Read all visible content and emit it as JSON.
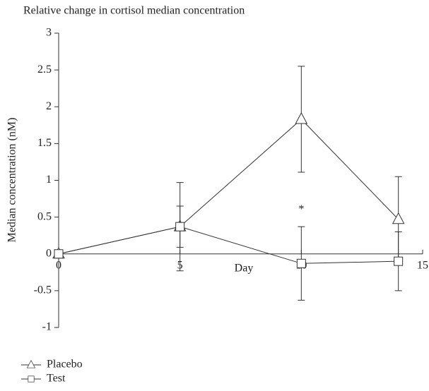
{
  "chart_data": {
    "type": "line",
    "title": "Relative change in cortisol median concentration",
    "xlabel": "Day",
    "ylabel": "Median concentration (nM)",
    "x": [
      0,
      5,
      10,
      14
    ],
    "series": [
      {
        "name": "Placebo",
        "color": "#333333",
        "marker": "triangle",
        "values": [
          0,
          0.37,
          1.83,
          0.47
        ],
        "errors": [
          0,
          0.6,
          0.72,
          0.58
        ]
      },
      {
        "name": "Test",
        "color": "#333333",
        "marker": "square",
        "values": [
          0,
          0.37,
          -0.13,
          -0.1
        ],
        "errors": [
          0,
          0.28,
          0.5,
          0.4
        ]
      }
    ],
    "annotations": [
      {
        "text": "*",
        "x": 10,
        "y": 0.6
      }
    ],
    "xlim": [
      0,
      15
    ],
    "xticks": [
      0,
      5,
      10,
      15
    ],
    "ylim": [
      -1,
      3
    ],
    "yticks": [
      -1,
      -0.5,
      0,
      0.5,
      1,
      1.5,
      2,
      2.5,
      3
    ],
    "legend": "bottom-left"
  }
}
